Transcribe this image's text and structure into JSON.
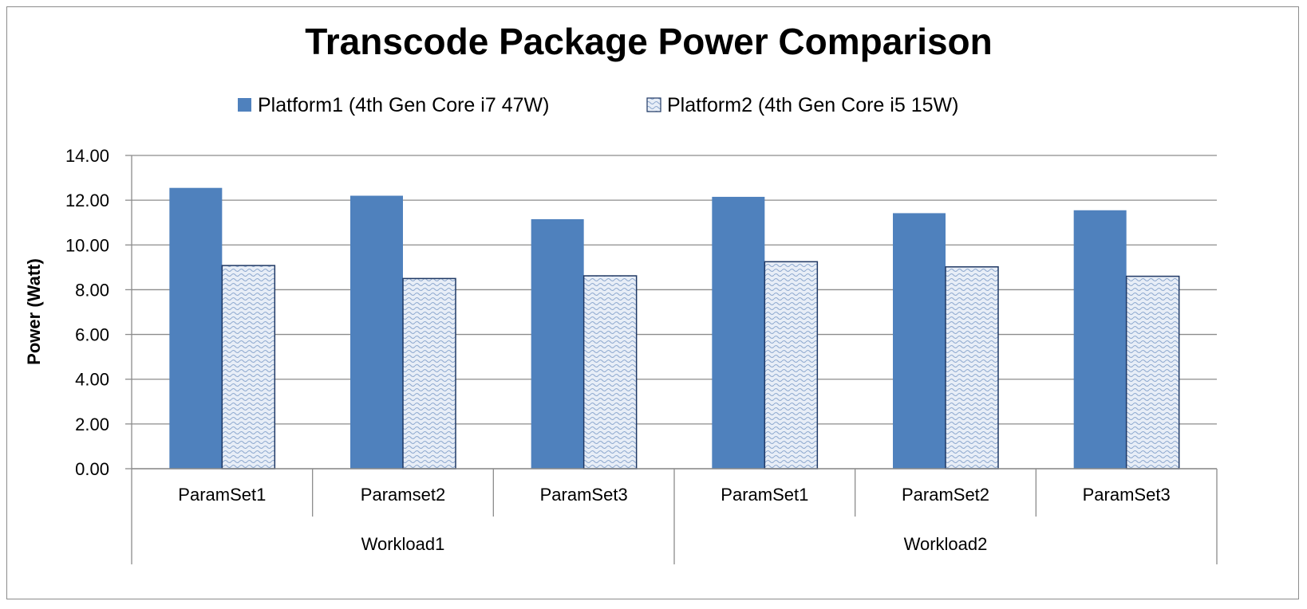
{
  "chart_data": {
    "type": "bar",
    "title": "Transcode Package Power Comparison",
    "ylabel": "Power (Watt)",
    "xlabel": "",
    "ylim": [
      0,
      14
    ],
    "yticks": [
      "0.00",
      "2.00",
      "4.00",
      "6.00",
      "8.00",
      "10.00",
      "12.00",
      "14.00"
    ],
    "grid": true,
    "legend_position": "top",
    "categories": [
      "ParamSet1",
      "Paramset2",
      "ParamSet3",
      "ParamSet1",
      "ParamSet2",
      "ParamSet3"
    ],
    "groups": [
      {
        "label": "Workload1",
        "span": [
          0,
          2
        ]
      },
      {
        "label": "Workload2",
        "span": [
          3,
          5
        ]
      }
    ],
    "series": [
      {
        "name": "Platform1 (4th Gen Core i7 47W)",
        "values": [
          12.55,
          12.2,
          11.15,
          12.15,
          11.42,
          11.55
        ],
        "color": "#4f81bd",
        "pattern": "solid"
      },
      {
        "name": "Platform2 (4th Gen Core i5 15W)",
        "values": [
          9.08,
          8.5,
          8.62,
          9.25,
          9.02,
          8.6
        ],
        "color": "#dbe5f1",
        "pattern": "wave"
      }
    ]
  }
}
